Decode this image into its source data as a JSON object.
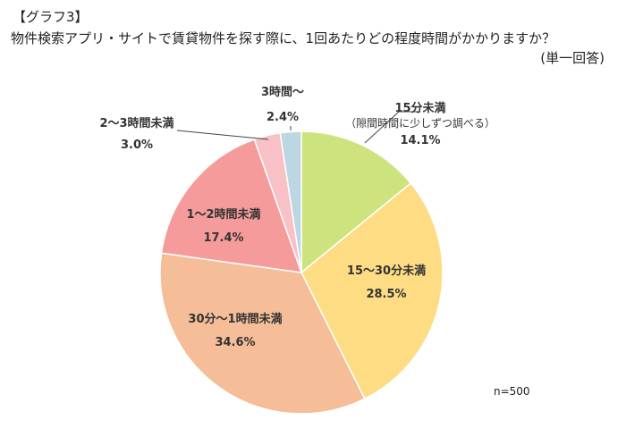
{
  "header": {
    "tag": "【グラフ3】",
    "question": "物件検索アプリ・サイトで賃貸物件を探す際に、1回あたりどの程度時間がかかりますか？",
    "answer_type": "(単一回答)"
  },
  "chart_data": {
    "type": "pie",
    "title": "物件検索アプリ・サイトで賃貸物件を探す際に、1回あたりどの程度時間がかかりますか？",
    "start": "12 o'clock",
    "direction": "clockwise",
    "slices": [
      {
        "label": "15分未満",
        "note": "（隙間時間に少しずつ調べる）",
        "value": 14.1,
        "value_label": "14.1%",
        "color": "#cde47e"
      },
      {
        "label": "15～30分未満",
        "value": 28.5,
        "value_label": "28.5%",
        "color": "#fddc84"
      },
      {
        "label": "30分～1時間未満",
        "value": 34.6,
        "value_label": "34.6%",
        "color": "#f5bd98"
      },
      {
        "label": "1～2時間未満",
        "value": 17.4,
        "value_label": "17.4%",
        "color": "#f59b9b"
      },
      {
        "label": "2～3時間未満",
        "value": 3.0,
        "value_label": "3.0%",
        "color": "#f8c1c5"
      },
      {
        "label": "3時間～",
        "value": 2.4,
        "value_label": "2.4%",
        "color": "#bcd7e2"
      }
    ],
    "sample": "n=500"
  }
}
